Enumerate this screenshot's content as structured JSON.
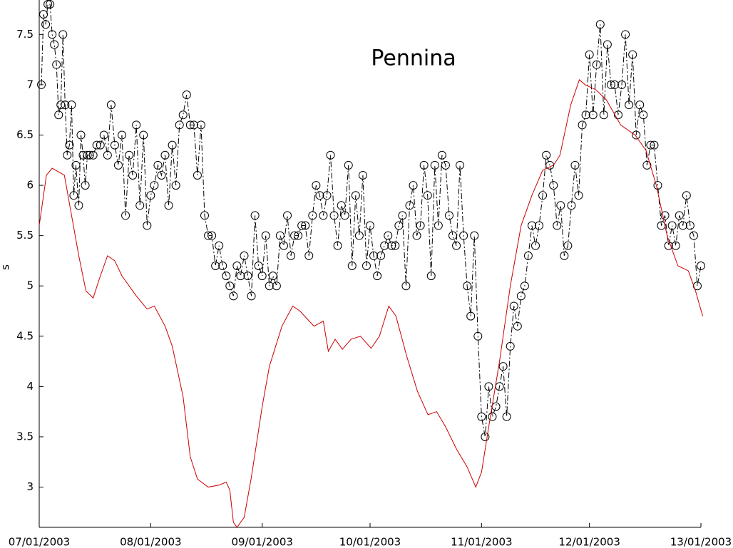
{
  "chart_data": {
    "type": "line",
    "title": "Pennina",
    "y_label": "s",
    "xlim": [
      0,
      184
    ],
    "ylim": [
      2.6,
      7.8
    ],
    "xticks": [
      {
        "value": 0,
        "label": "07/01/2003"
      },
      {
        "value": 31,
        "label": "08/01/2003"
      },
      {
        "value": 62,
        "label": "09/01/2003"
      },
      {
        "value": 92,
        "label": "10/01/2003"
      },
      {
        "value": 123,
        "label": "11/01/2003"
      },
      {
        "value": 153,
        "label": "12/01/2003"
      },
      {
        "value": 184,
        "label": "13/01/2003"
      }
    ],
    "yticks": [
      3,
      3.5,
      4,
      4.5,
      5,
      5.5,
      6,
      6.5,
      7,
      7.5
    ],
    "grid": false,
    "series": [
      {
        "color": "#000000",
        "line_style": "dashdot",
        "marker": "circle",
        "x": [
          0.6,
          1.2,
          1.8,
          2.4,
          3,
          3.6,
          4.2,
          4.8,
          5.4,
          6,
          6.6,
          7.2,
          7.8,
          8.4,
          9,
          9.6,
          10.2,
          11,
          11.6,
          12.2,
          12.8,
          13.4,
          14,
          15,
          16,
          17,
          18,
          19,
          20,
          21,
          22,
          23,
          24,
          25,
          26,
          27,
          28,
          29,
          30,
          31,
          32,
          33,
          34,
          35,
          36,
          37,
          38,
          39,
          40,
          41,
          42,
          43,
          44,
          45,
          46,
          47,
          48,
          49,
          50,
          51,
          52,
          53,
          54,
          55,
          56,
          57,
          58,
          59,
          60,
          61,
          62,
          63,
          64,
          65,
          66,
          67,
          68,
          69,
          70,
          71,
          72,
          73,
          74,
          75,
          76,
          77,
          78,
          79,
          80,
          81,
          82,
          83,
          84,
          85,
          86,
          87,
          88,
          89,
          90,
          91,
          92,
          93,
          94,
          95,
          96,
          97,
          98,
          99,
          100,
          101,
          102,
          103,
          104,
          105,
          106,
          107,
          108,
          109,
          110,
          111,
          112,
          113,
          114,
          115,
          116,
          117,
          118,
          119,
          120,
          121,
          122,
          123,
          124,
          125,
          126,
          127,
          128,
          129,
          130,
          131,
          132,
          133,
          134,
          135,
          136,
          137,
          138,
          139,
          140,
          141,
          142,
          143,
          144,
          145,
          146,
          147,
          148,
          149,
          150,
          151,
          152,
          153,
          154,
          155,
          156,
          157,
          158,
          159,
          160,
          161,
          162,
          163,
          164,
          165,
          166,
          167,
          168,
          169,
          170,
          171,
          172,
          173,
          174,
          175,
          176,
          177,
          178,
          179,
          180,
          181,
          182,
          183,
          184
        ],
        "values": [
          7.0,
          7.7,
          7.6,
          7.8,
          7.8,
          7.5,
          7.4,
          7.2,
          6.7,
          6.8,
          7.5,
          6.8,
          6.3,
          6.4,
          6.8,
          5.9,
          6.2,
          5.8,
          6.5,
          6.3,
          6.0,
          6.3,
          6.3,
          6.3,
          6.4,
          6.4,
          6.5,
          6.3,
          6.8,
          6.4,
          6.2,
          6.5,
          5.7,
          6.3,
          6.1,
          6.6,
          5.8,
          6.5,
          5.6,
          5.9,
          6.0,
          6.2,
          6.1,
          6.3,
          5.8,
          6.4,
          6.0,
          6.6,
          6.7,
          6.9,
          6.6,
          6.6,
          6.1,
          6.6,
          5.7,
          5.5,
          5.5,
          5.2,
          5.4,
          5.2,
          5.1,
          5.0,
          4.9,
          5.2,
          5.1,
          5.3,
          5.1,
          4.9,
          5.7,
          5.2,
          5.1,
          5.5,
          5.0,
          5.1,
          5.0,
          5.5,
          5.4,
          5.7,
          5.3,
          5.5,
          5.5,
          5.6,
          5.6,
          5.3,
          5.7,
          6.0,
          5.9,
          5.7,
          5.9,
          6.3,
          5.7,
          5.4,
          5.8,
          5.7,
          6.2,
          5.2,
          5.9,
          5.5,
          6.1,
          5.2,
          5.6,
          5.3,
          5.1,
          5.3,
          5.4,
          5.5,
          5.4,
          5.4,
          5.6,
          5.7,
          5.0,
          5.8,
          6.0,
          5.5,
          5.6,
          6.2,
          5.9,
          5.1,
          6.2,
          5.6,
          6.3,
          6.2,
          5.7,
          5.5,
          5.4,
          6.2,
          5.5,
          5.0,
          4.7,
          5.5,
          4.5,
          3.7,
          3.5,
          4.0,
          3.7,
          3.8,
          4.0,
          4.2,
          3.7,
          4.4,
          4.8,
          4.6,
          4.9,
          5.0,
          5.3,
          5.6,
          5.4,
          5.6,
          5.9,
          6.3,
          6.2,
          6.0,
          5.6,
          5.8,
          5.3,
          5.4,
          5.8,
          6.2,
          5.9,
          6.6,
          6.7,
          7.3,
          6.7,
          7.2,
          7.6,
          6.7,
          7.4,
          7.0,
          7.0,
          6.7,
          7.0,
          7.5,
          6.8,
          7.3,
          6.5,
          6.8,
          6.7,
          6.2,
          6.4,
          6.4,
          6.0,
          5.6,
          5.7,
          5.4,
          5.6,
          5.4,
          5.7,
          5.6,
          5.9,
          5.6,
          5.5,
          5.0,
          5.2
        ]
      },
      {
        "color": "#cc0000",
        "line_style": "solid",
        "marker": "none",
        "x": [
          0,
          2,
          3.6,
          7,
          8.5,
          11,
          13,
          15,
          17,
          19,
          21,
          23,
          27,
          30,
          32,
          35,
          37,
          40,
          42,
          44,
          47,
          50,
          52,
          53,
          54,
          55,
          57,
          59,
          62,
          64,
          67.5,
          70.5,
          72.5,
          76.4,
          79,
          80.4,
          82.3,
          84.3,
          86.7,
          89.3,
          92.3,
          94.6,
          97.2,
          99.2,
          102.2,
          105.2,
          108.1,
          110.5,
          113,
          116,
          119,
          121.4,
          123,
          125,
          128,
          131,
          134,
          137,
          140,
          143,
          144.8,
          147.8,
          150.2,
          151.8,
          154.8,
          157.7,
          161.7,
          165.7,
          168.7,
          171.6,
          174.6,
          177.6,
          180.5,
          182.5,
          184.5
        ],
        "values": [
          5.6,
          6.1,
          6.17,
          6.1,
          5.8,
          5.3,
          4.95,
          4.88,
          5.1,
          5.3,
          5.25,
          5.1,
          4.9,
          4.77,
          4.8,
          4.6,
          4.4,
          3.9,
          3.3,
          3.08,
          3.0,
          3.02,
          3.05,
          2.97,
          2.65,
          2.6,
          2.7,
          3.1,
          3.8,
          4.2,
          4.6,
          4.8,
          4.75,
          4.6,
          4.65,
          4.35,
          4.47,
          4.37,
          4.47,
          4.5,
          4.38,
          4.5,
          4.8,
          4.7,
          4.3,
          3.95,
          3.72,
          3.75,
          3.6,
          3.38,
          3.2,
          3.0,
          3.15,
          3.6,
          4.25,
          5.0,
          5.6,
          5.9,
          6.15,
          6.2,
          6.3,
          6.8,
          7.05,
          7.0,
          6.95,
          6.85,
          6.6,
          6.5,
          6.35,
          6.0,
          5.5,
          5.2,
          5.15,
          4.95,
          4.7
        ]
      }
    ]
  }
}
